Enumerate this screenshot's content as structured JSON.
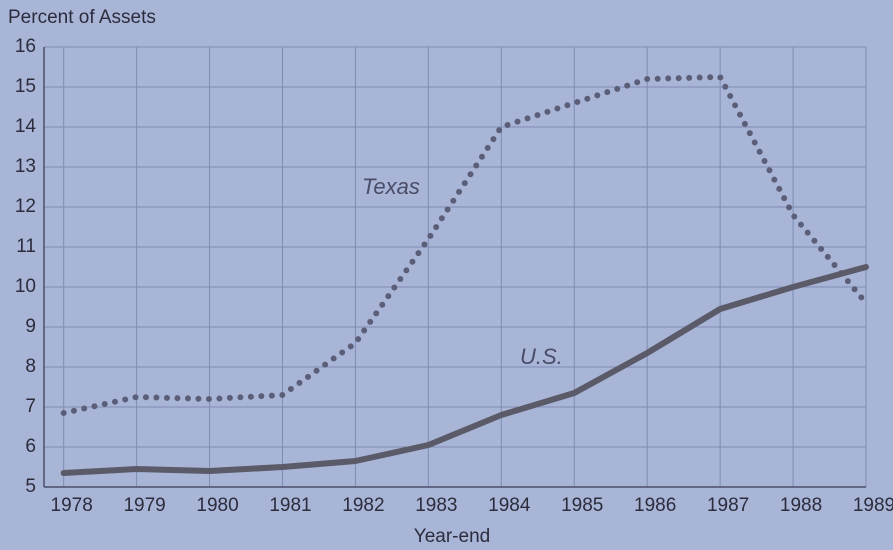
{
  "chart_data": {
    "type": "line",
    "y_label": "Percent of Assets",
    "x_label": "Year-end",
    "x": [
      1978,
      1979,
      1980,
      1981,
      1982,
      1983,
      1984,
      1985,
      1986,
      1987,
      1988,
      1989
    ],
    "series": [
      {
        "name": "Texas",
        "color": "#5b5e78",
        "style": "dotted",
        "values": [
          6.85,
          7.25,
          7.2,
          7.3,
          8.6,
          11.2,
          14.0,
          14.6,
          15.2,
          15.25,
          11.8,
          9.6
        ]
      },
      {
        "name": "U.S.",
        "color": "#5a5a68",
        "style": "solid",
        "values": [
          5.35,
          5.45,
          5.4,
          5.5,
          5.65,
          6.05,
          6.8,
          7.35,
          8.35,
          9.45,
          10.0,
          10.5
        ]
      }
    ],
    "xlim": [
      1977.73,
      1989
    ],
    "xticks": [
      1978,
      1979,
      1980,
      1981,
      1982,
      1983,
      1984,
      1985,
      1986,
      1987,
      1988,
      1989
    ],
    "ylim": [
      5,
      16
    ],
    "yticks": [
      5,
      6,
      7,
      8,
      9,
      10,
      11,
      12,
      13,
      14,
      15,
      16
    ],
    "grid": true
  }
}
